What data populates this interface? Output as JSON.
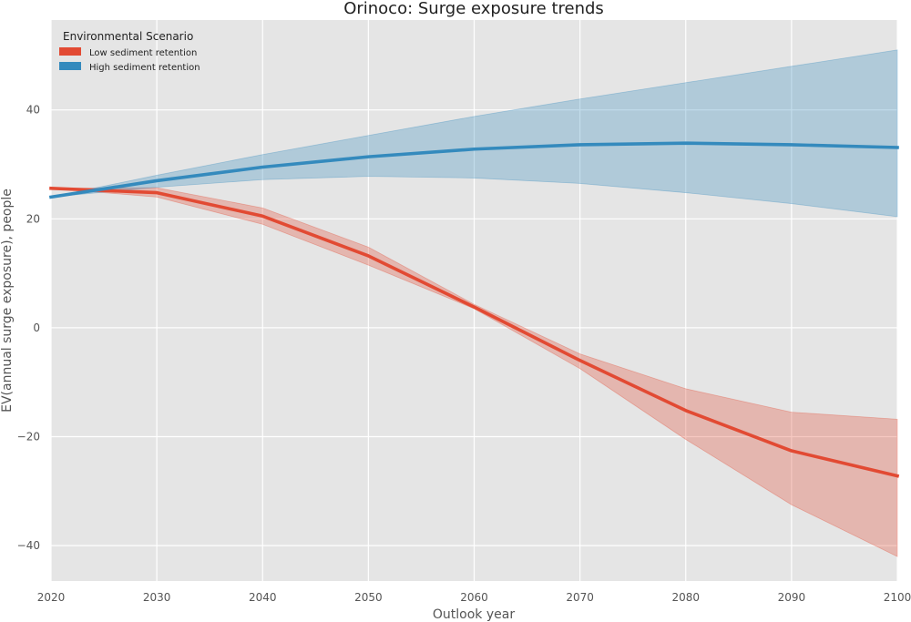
{
  "chart_data": {
    "type": "line",
    "title": "Orinoco: Surge exposure trends",
    "xlabel": "Outlook year",
    "ylabel": "EV(annual surge exposure), people",
    "xlim": [
      2020,
      2100
    ],
    "ylim": [
      -46.5,
      56.5
    ],
    "xticks": [
      2020,
      2030,
      2040,
      2050,
      2060,
      2070,
      2080,
      2090,
      2100
    ],
    "yticks": [
      -40,
      -20,
      0,
      20,
      40
    ],
    "grid": true,
    "legend": {
      "title": "Environmental Scenario",
      "placement": "top-left"
    },
    "x": [
      2020,
      2030,
      2040,
      2050,
      2060,
      2070,
      2080,
      2090,
      2100
    ],
    "series": [
      {
        "name": "Low sediment retention",
        "color": "#E24A33",
        "values": [
          25.6,
          24.8,
          20.5,
          13.2,
          3.8,
          -6.0,
          -15.2,
          -22.6,
          -27.2
        ],
        "lower": [
          25.6,
          24.0,
          19.0,
          11.5,
          3.5,
          -7.5,
          -20.5,
          -32.5,
          -42.0
        ],
        "upper": [
          25.6,
          25.7,
          22.0,
          14.8,
          4.3,
          -4.8,
          -11.2,
          -15.5,
          -16.8
        ]
      },
      {
        "name": "High sediment retention",
        "color": "#348ABD",
        "values": [
          24.0,
          27.0,
          29.5,
          31.4,
          32.8,
          33.6,
          33.9,
          33.6,
          33.1
        ],
        "lower": [
          24.0,
          25.8,
          27.2,
          27.8,
          27.5,
          26.5,
          24.8,
          22.8,
          20.4
        ],
        "upper": [
          24.0,
          28.0,
          31.8,
          35.3,
          38.8,
          42.0,
          45.0,
          48.0,
          51.0
        ]
      }
    ]
  }
}
